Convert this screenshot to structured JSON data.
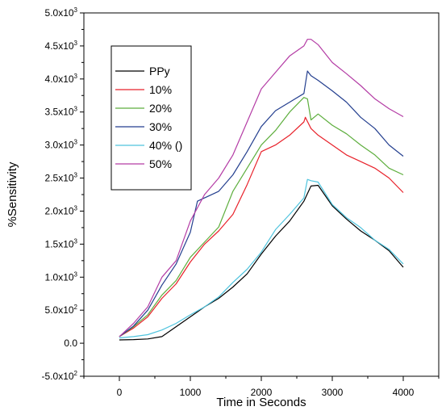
{
  "chart_data": {
    "type": "line",
    "xlabel": "Time in Seconds",
    "ylabel": "%Sensitivity",
    "xlim": [
      -500,
      4500
    ],
    "ylim": [
      -500,
      5000
    ],
    "x_ticks": [
      0,
      1000,
      2000,
      3000,
      4000
    ],
    "x_tick_labels": [
      "0",
      "1000",
      "2000",
      "3000",
      "4000"
    ],
    "y_ticks": [
      -500,
      0,
      500,
      1000,
      1500,
      2000,
      2500,
      3000,
      3500,
      4000,
      4500,
      5000
    ],
    "y_tick_labels": [
      {
        "base": "-5.0x10",
        "exp": "2"
      },
      {
        "base": "0.0",
        "exp": ""
      },
      {
        "base": "5.0x10",
        "exp": "2"
      },
      {
        "base": "1.0x10",
        "exp": "3"
      },
      {
        "base": "1.5x10",
        "exp": "3"
      },
      {
        "base": "2.0x10",
        "exp": "3"
      },
      {
        "base": "2.5x10",
        "exp": "3"
      },
      {
        "base": "3.0x10",
        "exp": "3"
      },
      {
        "base": "3.5x10",
        "exp": "3"
      },
      {
        "base": "4.0x10",
        "exp": "3"
      },
      {
        "base": "4.5x10",
        "exp": "3"
      },
      {
        "base": "5.0x10",
        "exp": "3"
      }
    ],
    "grid": false,
    "legend_position": "upper-left",
    "series": [
      {
        "name": "PPy",
        "color": "#000000",
        "x": [
          0,
          200,
          400,
          600,
          800,
          1000,
          1200,
          1400,
          1600,
          1800,
          2000,
          2200,
          2400,
          2600,
          2700,
          2800,
          3000,
          3200,
          3400,
          3600,
          3800,
          4000
        ],
        "y": [
          50,
          55,
          65,
          100,
          250,
          400,
          550,
          680,
          850,
          1050,
          1350,
          1620,
          1850,
          2150,
          2380,
          2390,
          2080,
          1880,
          1700,
          1560,
          1400,
          1150
        ]
      },
      {
        "name": "10%",
        "color": "#e8212a",
        "x": [
          0,
          200,
          400,
          600,
          800,
          1000,
          1200,
          1400,
          1600,
          1800,
          2000,
          2200,
          2400,
          2600,
          2620,
          2700,
          2800,
          3000,
          3200,
          3400,
          3600,
          3800,
          4000
        ],
        "y": [
          100,
          230,
          400,
          680,
          900,
          1230,
          1500,
          1700,
          1950,
          2400,
          2900,
          3000,
          3150,
          3350,
          3420,
          3250,
          3150,
          3000,
          2850,
          2750,
          2650,
          2500,
          2280
        ]
      },
      {
        "name": "20%",
        "color": "#5dae3d",
        "x": [
          0,
          200,
          400,
          600,
          800,
          1000,
          1200,
          1400,
          1600,
          1800,
          2000,
          2200,
          2400,
          2600,
          2650,
          2700,
          2800,
          3000,
          3200,
          3400,
          3600,
          3800,
          4000
        ],
        "y": [
          100,
          250,
          430,
          730,
          950,
          1300,
          1530,
          1760,
          2300,
          2650,
          3000,
          3220,
          3500,
          3720,
          3700,
          3380,
          3470,
          3300,
          3170,
          3000,
          2850,
          2650,
          2550
        ]
      },
      {
        "name": "30%",
        "color": "#243f8f",
        "x": [
          0,
          200,
          400,
          600,
          800,
          1000,
          1100,
          1200,
          1400,
          1600,
          1800,
          2000,
          2200,
          2400,
          2600,
          2650,
          2700,
          2800,
          3000,
          3200,
          3400,
          3600,
          3800,
          4000
        ],
        "y": [
          100,
          260,
          500,
          880,
          1200,
          1680,
          2150,
          2200,
          2300,
          2550,
          2900,
          3280,
          3520,
          3650,
          3780,
          4120,
          4050,
          3980,
          3820,
          3650,
          3420,
          3250,
          3000,
          2830
        ]
      },
      {
        "name": "40% ()",
        "color": "#4fc4de",
        "x": [
          0,
          200,
          400,
          600,
          800,
          1000,
          1200,
          1400,
          1600,
          1800,
          2000,
          2200,
          2400,
          2600,
          2650,
          2700,
          2800,
          3000,
          3200,
          3400,
          3600,
          3800,
          4000
        ],
        "y": [
          80,
          100,
          130,
          200,
          300,
          430,
          550,
          700,
          920,
          1120,
          1380,
          1720,
          1950,
          2200,
          2480,
          2460,
          2440,
          2100,
          1900,
          1750,
          1560,
          1420,
          1200
        ]
      },
      {
        "name": "50%",
        "color": "#b43ca5",
        "x": [
          0,
          200,
          400,
          600,
          800,
          1000,
          1200,
          1400,
          1600,
          1800,
          2000,
          2200,
          2400,
          2600,
          2650,
          2700,
          2800,
          3000,
          3200,
          3400,
          3600,
          3800,
          4000
        ],
        "y": [
          100,
          300,
          550,
          1000,
          1250,
          1850,
          2250,
          2500,
          2850,
          3350,
          3850,
          4100,
          4350,
          4500,
          4600,
          4600,
          4520,
          4250,
          4080,
          3900,
          3700,
          3550,
          3430
        ]
      }
    ]
  }
}
